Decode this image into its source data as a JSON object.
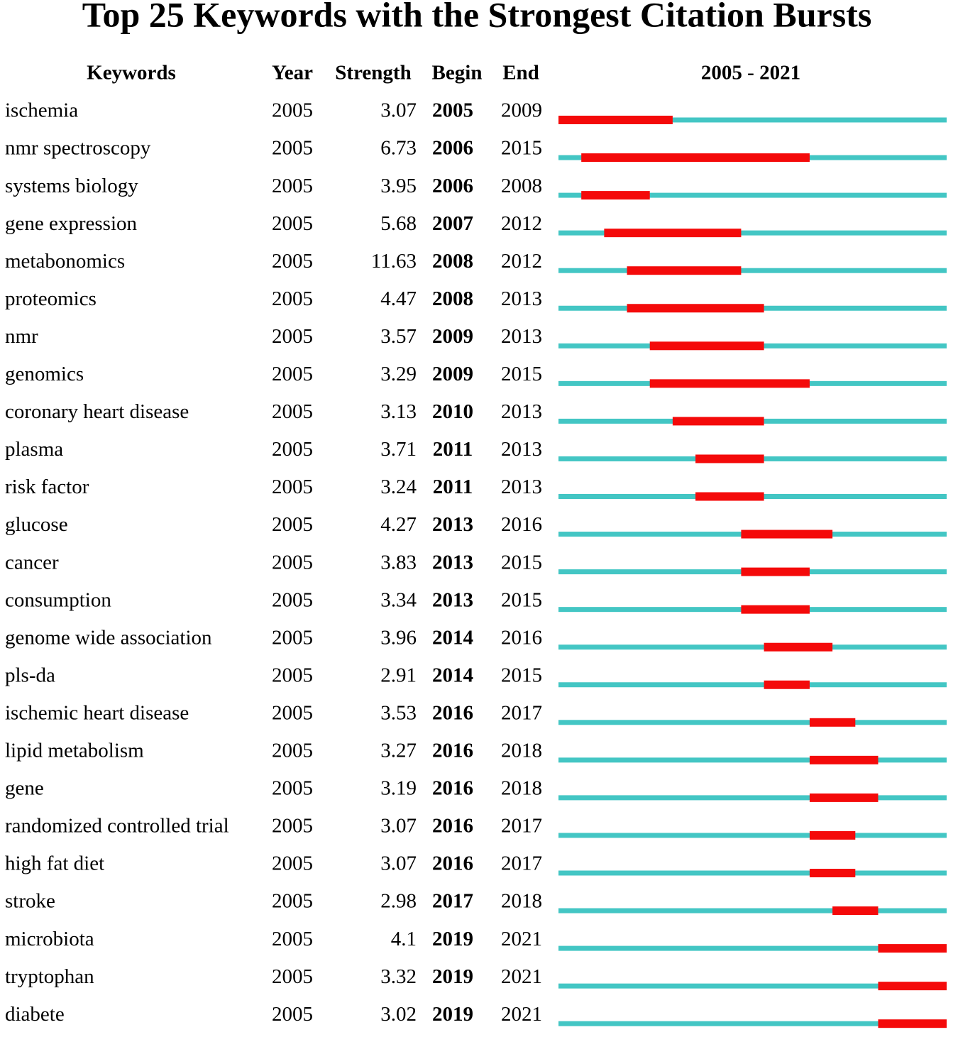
{
  "title": "Top 25 Keywords with the Strongest Citation Bursts",
  "header": {
    "keywords": "Keywords",
    "year": "Year",
    "strength": "Strength",
    "begin": "Begin",
    "end": "End",
    "range": "2005 - 2021"
  },
  "rows": [
    {
      "keyword": "ischemia",
      "year": 2005,
      "strength": 3.07,
      "begin": 2005,
      "end": 2009
    },
    {
      "keyword": "nmr spectroscopy",
      "year": 2005,
      "strength": 6.73,
      "begin": 2006,
      "end": 2015
    },
    {
      "keyword": "systems biology",
      "year": 2005,
      "strength": 3.95,
      "begin": 2006,
      "end": 2008
    },
    {
      "keyword": "gene expression",
      "year": 2005,
      "strength": 5.68,
      "begin": 2007,
      "end": 2012
    },
    {
      "keyword": "metabonomics",
      "year": 2005,
      "strength": 11.63,
      "begin": 2008,
      "end": 2012
    },
    {
      "keyword": "proteomics",
      "year": 2005,
      "strength": 4.47,
      "begin": 2008,
      "end": 2013
    },
    {
      "keyword": "nmr",
      "year": 2005,
      "strength": 3.57,
      "begin": 2009,
      "end": 2013
    },
    {
      "keyword": "genomics",
      "year": 2005,
      "strength": 3.29,
      "begin": 2009,
      "end": 2015
    },
    {
      "keyword": "coronary heart disease",
      "year": 2005,
      "strength": 3.13,
      "begin": 2010,
      "end": 2013
    },
    {
      "keyword": "plasma",
      "year": 2005,
      "strength": 3.71,
      "begin": 2011,
      "end": 2013
    },
    {
      "keyword": "risk factor",
      "year": 2005,
      "strength": 3.24,
      "begin": 2011,
      "end": 2013
    },
    {
      "keyword": "glucose",
      "year": 2005,
      "strength": 4.27,
      "begin": 2013,
      "end": 2016
    },
    {
      "keyword": "cancer",
      "year": 2005,
      "strength": 3.83,
      "begin": 2013,
      "end": 2015
    },
    {
      "keyword": "consumption",
      "year": 2005,
      "strength": 3.34,
      "begin": 2013,
      "end": 2015
    },
    {
      "keyword": "genome wide association",
      "year": 2005,
      "strength": 3.96,
      "begin": 2014,
      "end": 2016
    },
    {
      "keyword": "pls-da",
      "year": 2005,
      "strength": 2.91,
      "begin": 2014,
      "end": 2015
    },
    {
      "keyword": "ischemic heart disease",
      "year": 2005,
      "strength": 3.53,
      "begin": 2016,
      "end": 2017
    },
    {
      "keyword": "lipid metabolism",
      "year": 2005,
      "strength": 3.27,
      "begin": 2016,
      "end": 2018
    },
    {
      "keyword": "gene",
      "year": 2005,
      "strength": 3.19,
      "begin": 2016,
      "end": 2018
    },
    {
      "keyword": "randomized controlled trial",
      "year": 2005,
      "strength": 3.07,
      "begin": 2016,
      "end": 2017
    },
    {
      "keyword": "high fat diet",
      "year": 2005,
      "strength": 3.07,
      "begin": 2016,
      "end": 2017
    },
    {
      "keyword": "stroke",
      "year": 2005,
      "strength": 2.98,
      "begin": 2017,
      "end": 2018
    },
    {
      "keyword": "microbiota",
      "year": 2005,
      "strength": 4.1,
      "begin": 2019,
      "end": 2021
    },
    {
      "keyword": "tryptophan",
      "year": 2005,
      "strength": 3.32,
      "begin": 2019,
      "end": 2021
    },
    {
      "keyword": "diabete",
      "year": 2005,
      "strength": 3.02,
      "begin": 2019,
      "end": 2021
    }
  ]
}
